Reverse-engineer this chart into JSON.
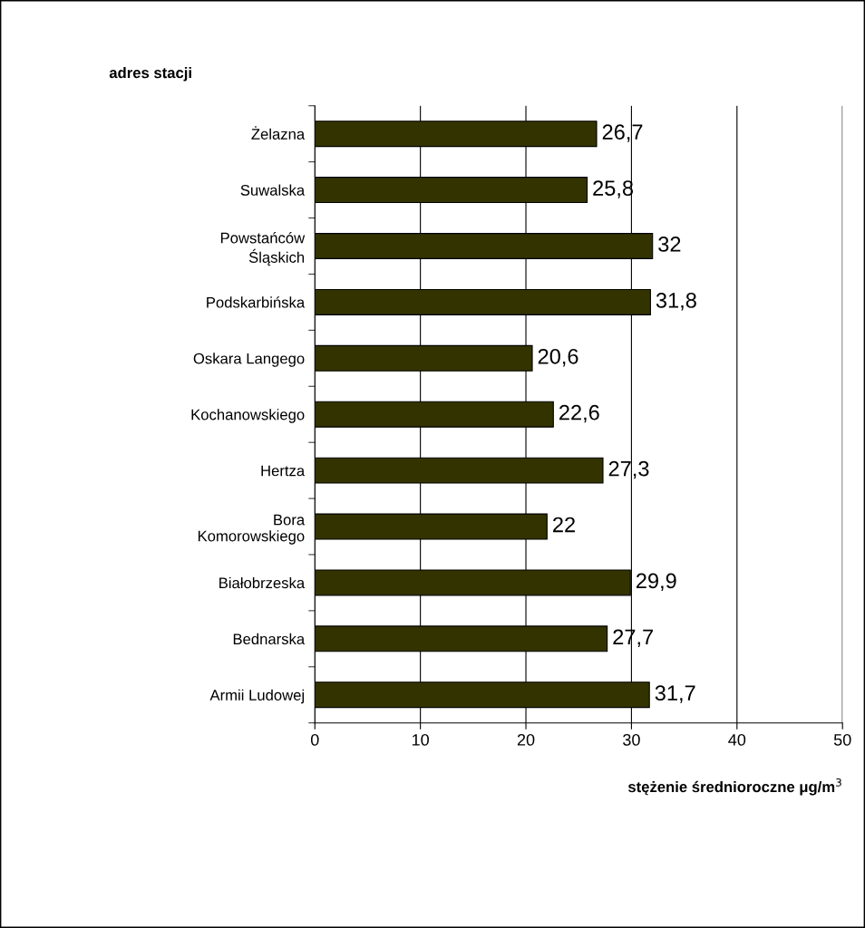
{
  "chart_data": {
    "type": "bar",
    "orientation": "horizontal",
    "categories": [
      "Żelazna",
      "Suwalska",
      "Powstańców\nŚląskich",
      "Podskarbińska",
      "Oskara Langego",
      "Kochanowskiego",
      "Hertza",
      "Bora\nKomorowskiego",
      "Białobrzeska",
      "Bednarska",
      "Armii Ludowej"
    ],
    "values": [
      26.7,
      25.8,
      32,
      31.8,
      20.6,
      22.6,
      27.3,
      22,
      29.9,
      27.7,
      31.7
    ],
    "value_labels": [
      "26,7",
      "25,8",
      "32",
      "31,8",
      "20,6",
      "22,6",
      "27,3",
      "22",
      "29,9",
      "27,7",
      "31,7"
    ],
    "color": "#333300",
    "xlim": [
      0,
      50
    ],
    "xticks": [
      0,
      10,
      20,
      30,
      40,
      50
    ],
    "grid": "x",
    "legend": false,
    "ylabel": "adres stacji",
    "xlabel": "stężenie średnioroczne μg/m$^{3}$"
  }
}
